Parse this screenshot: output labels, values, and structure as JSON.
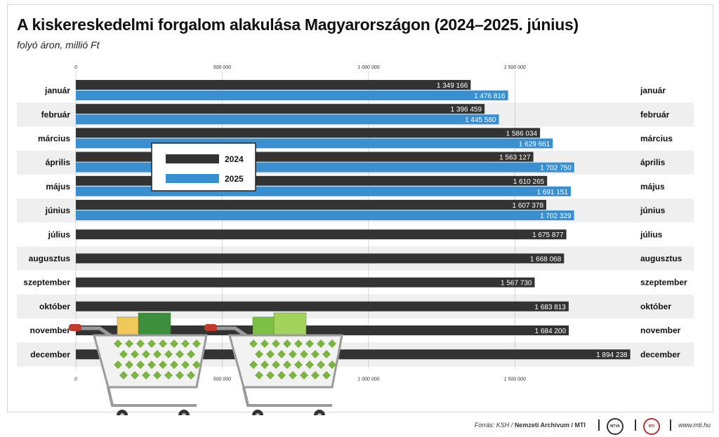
{
  "header": {
    "title": "A kiskereskedelmi forgalom alakulása Magyarországon (2024–2025. június)",
    "subtitle": "folyó áron, millió Ft"
  },
  "footer": {
    "source_prefix": "Forrás: KSH / ",
    "source_bold": "Nemzeti Archívum / MTI",
    "logo1_text": "MTVA",
    "logo2_text": "MTI",
    "website": "www.mti.hu"
  },
  "chart_data": {
    "type": "bar",
    "orientation": "horizontal",
    "categories": [
      "január",
      "február",
      "március",
      "április",
      "május",
      "június",
      "július",
      "augusztus",
      "szeptember",
      "október",
      "november",
      "december"
    ],
    "series": [
      {
        "name": "2024",
        "color": "#333333",
        "values": [
          1349166,
          1396459,
          1586034,
          1563127,
          1610265,
          1607378,
          1675877,
          1668068,
          1567730,
          1683813,
          1684200,
          1894238
        ],
        "labels": [
          "1 349 166",
          "1 396 459",
          "1 586 034",
          "1 563 127",
          "1 610 265",
          "1 607 378",
          "1 675 877",
          "1 668 068",
          "1 567 730",
          "1 683 813",
          "1 684 200",
          "1 894 238"
        ]
      },
      {
        "name": "2025",
        "color": "#3a8fd0",
        "values": [
          1476816,
          1445580,
          1629661,
          1702750,
          1691151,
          1702329,
          null,
          null,
          null,
          null,
          null,
          null
        ],
        "labels": [
          "1 476 816",
          "1 445 580",
          "1 629 661",
          "1 702 750",
          "1 691 151",
          "1 702 329",
          "",
          "",
          "",
          "",
          "",
          ""
        ]
      }
    ],
    "xlim": [
      0,
      1900000
    ],
    "ticks": [
      0,
      500000,
      1000000,
      1500000
    ],
    "tick_labels": [
      "0",
      "500 000",
      "1 000 000",
      "1 500 000"
    ],
    "legend_position": "upper-left inside",
    "grid": true,
    "band_color": "#efefef"
  }
}
